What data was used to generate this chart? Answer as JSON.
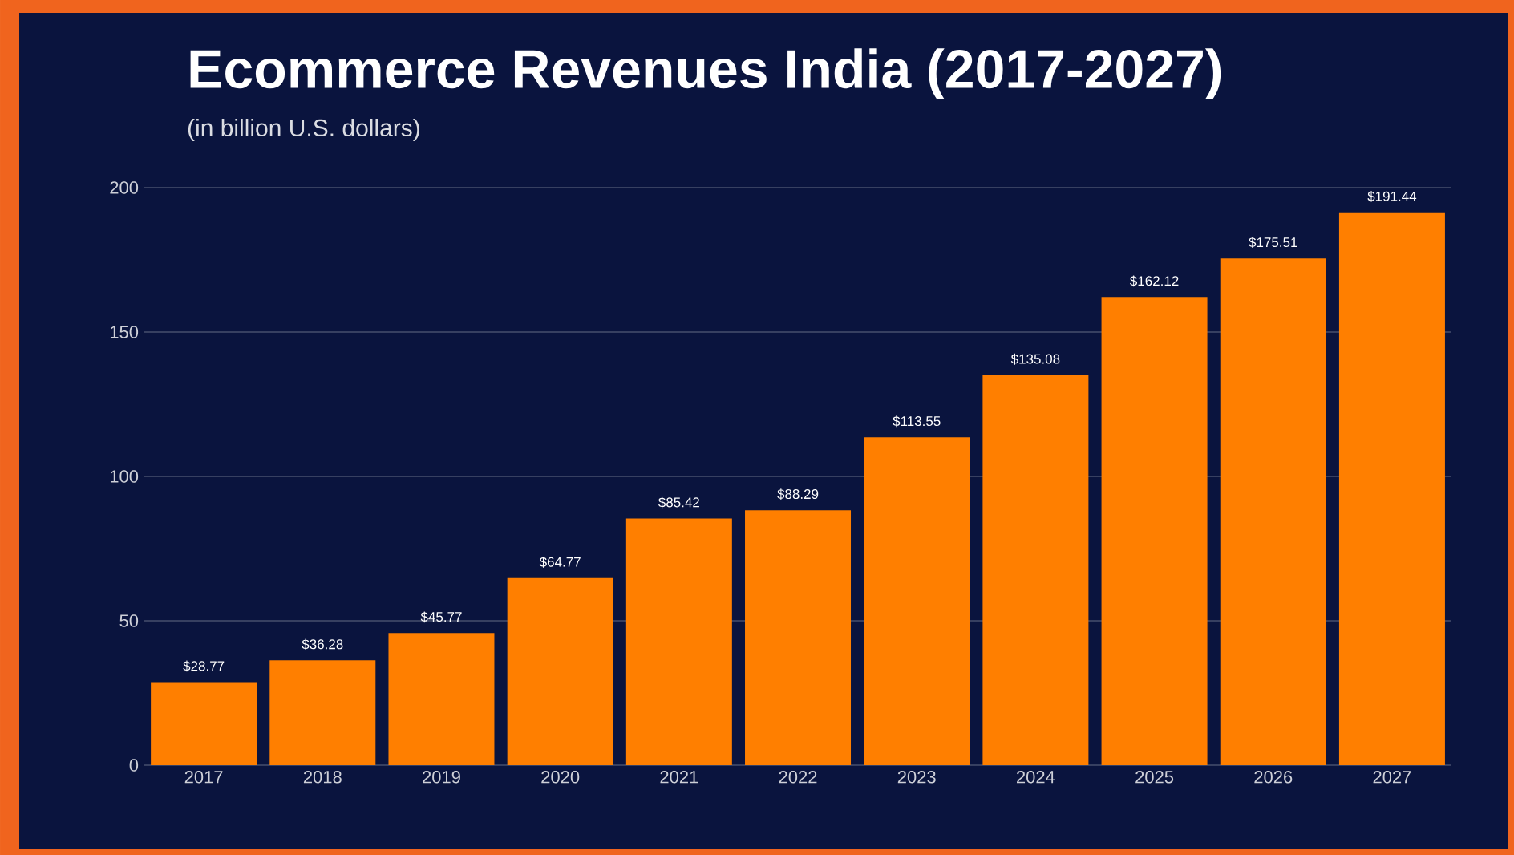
{
  "chart_data": {
    "type": "bar",
    "title": "Ecommerce Revenues India  (2017-2027)",
    "subtitle": "(in billion U.S. dollars)",
    "categories": [
      "2017",
      "2018",
      "2019",
      "2020",
      "2021",
      "2022",
      "2023",
      "2024",
      "2025",
      "2026",
      "2027"
    ],
    "values": [
      28.77,
      36.28,
      45.77,
      64.77,
      85.42,
      88.29,
      113.55,
      135.08,
      162.12,
      175.51,
      191.44
    ],
    "value_labels": [
      "$28.77",
      "$36.28",
      "$45.77",
      "$64.77",
      "$85.42",
      "$88.29",
      "$113.55",
      "$135.08",
      "$162.12",
      "$175.51",
      "$191.44"
    ],
    "color": "#ff7f00",
    "ylim": [
      0,
      200
    ],
    "yticks": [
      0,
      50,
      100,
      150,
      200
    ],
    "grid": "y"
  }
}
